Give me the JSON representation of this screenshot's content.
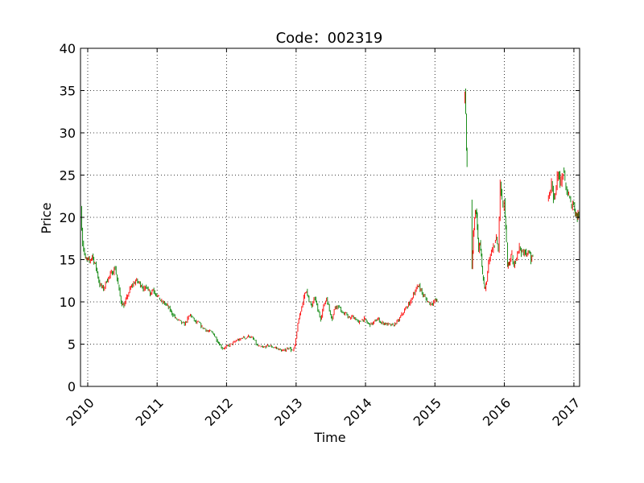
{
  "chart_data": {
    "type": "line",
    "chart_style": "daily candlestick (red = up day, green = down day)",
    "title": "Code：002319",
    "xlabel": "Time",
    "ylabel": "Price",
    "ylim": [
      0,
      40
    ],
    "xlim": [
      "2009-11-24",
      "2017-01-31"
    ],
    "grid": true,
    "grid_style": "dotted",
    "up_color": "#ff0000",
    "down_color": "#008000",
    "y_ticks": [
      0,
      5,
      10,
      15,
      20,
      25,
      30,
      35,
      40
    ],
    "x_ticks": [
      {
        "date": "2010-01-01",
        "label": "2010"
      },
      {
        "date": "2011-01-01",
        "label": "2011"
      },
      {
        "date": "2012-01-01",
        "label": "2012"
      },
      {
        "date": "2013-01-01",
        "label": "2013"
      },
      {
        "date": "2014-01-01",
        "label": "2014"
      },
      {
        "date": "2015-01-01",
        "label": "2015"
      },
      {
        "date": "2016-01-01",
        "label": "2016"
      },
      {
        "date": "2017-01-01",
        "label": "2017"
      }
    ],
    "segments": [
      {
        "x": [
          "2009-11-26",
          "2009-12-05",
          "2009-12-20",
          "2010-01-10",
          "2010-01-25",
          "2010-02-15",
          "2010-03-05",
          "2010-03-25",
          "2010-04-10",
          "2010-04-25",
          "2010-05-10",
          "2010-05-25",
          "2010-06-10",
          "2010-06-25",
          "2010-07-10",
          "2010-07-25",
          "2010-08-10",
          "2010-08-25",
          "2010-09-10",
          "2010-09-25",
          "2010-10-10",
          "2010-10-25",
          "2010-11-10",
          "2010-11-25",
          "2010-12-10",
          "2010-12-25",
          "2011-01-10",
          "2011-01-25",
          "2011-02-10",
          "2011-02-25",
          "2011-03-10",
          "2011-03-25",
          "2011-04-10",
          "2011-04-25",
          "2011-05-10",
          "2011-05-25",
          "2011-06-10",
          "2011-06-25",
          "2011-07-10",
          "2011-07-25",
          "2011-08-10",
          "2011-08-25",
          "2011-09-10",
          "2011-09-25",
          "2011-10-10",
          "2011-10-25",
          "2011-11-10",
          "2011-11-25",
          "2011-12-10",
          "2011-12-25",
          "2012-01-10",
          "2012-01-25",
          "2012-02-10",
          "2012-02-25",
          "2012-03-10",
          "2012-03-25",
          "2012-04-10",
          "2012-04-25",
          "2012-05-10",
          "2012-05-25",
          "2012-06-10",
          "2012-06-25",
          "2012-07-10",
          "2012-07-25",
          "2012-08-10",
          "2012-08-25",
          "2012-09-10",
          "2012-09-25",
          "2012-10-10",
          "2012-10-25",
          "2012-11-10",
          "2012-11-25",
          "2012-12-05",
          "2012-12-15",
          "2012-12-25",
          "2013-01-05",
          "2013-01-15",
          "2013-01-25",
          "2013-02-10",
          "2013-02-25",
          "2013-03-10",
          "2013-03-25",
          "2013-04-10",
          "2013-04-25",
          "2013-05-10",
          "2013-05-25",
          "2013-06-10",
          "2013-06-25",
          "2013-07-10",
          "2013-07-25",
          "2013-08-10",
          "2013-08-25",
          "2013-09-10",
          "2013-09-25",
          "2013-10-10",
          "2013-10-25",
          "2013-11-10",
          "2013-11-25",
          "2013-12-10",
          "2013-12-25",
          "2014-01-10",
          "2014-01-25",
          "2014-02-10",
          "2014-02-25",
          "2014-03-10",
          "2014-03-25",
          "2014-04-10",
          "2014-04-25",
          "2014-05-10",
          "2014-05-25",
          "2014-06-10",
          "2014-06-25",
          "2014-07-10",
          "2014-07-25",
          "2014-08-10",
          "2014-08-25",
          "2014-09-10",
          "2014-09-25",
          "2014-10-10",
          "2014-10-25",
          "2014-11-10",
          "2014-11-25",
          "2014-12-10",
          "2014-12-25",
          "2015-01-05",
          "2015-01-12"
        ],
        "y": [
          21,
          17,
          15,
          14.8,
          15.5,
          14,
          12,
          11.5,
          12.5,
          13,
          13.5,
          14,
          12,
          10,
          9.5,
          10.5,
          11.5,
          12,
          12.5,
          12.3,
          12,
          11.5,
          11.8,
          11,
          11.5,
          11,
          10.5,
          10,
          9.8,
          9.5,
          9,
          8.5,
          8,
          7.8,
          7.5,
          7.3,
          8,
          8.5,
          8,
          7.5,
          7.5,
          7,
          6.8,
          6.5,
          6.5,
          6.2,
          5.5,
          5,
          4.5,
          4.6,
          4.8,
          5,
          5.2,
          5.5,
          5.5,
          5.8,
          5.7,
          6,
          5.8,
          5.5,
          4.8,
          4.7,
          4.6,
          4.7,
          4.8,
          4.7,
          4.6,
          4.5,
          4.3,
          4.2,
          4.4,
          4.6,
          4.3,
          4.2,
          4.8,
          6.5,
          8,
          9,
          10.5,
          11.5,
          10,
          9.5,
          10.5,
          9,
          8,
          9.5,
          10.5,
          9,
          8,
          9.5,
          9.5,
          9,
          8.5,
          8.5,
          8,
          8.3,
          8,
          7.5,
          7.8,
          8,
          7.5,
          7.3,
          7.5,
          7.8,
          8,
          7.5,
          7.5,
          7.3,
          7.3,
          7.2,
          7.5,
          7.8,
          8.5,
          9,
          9.5,
          10,
          11,
          11.5,
          12,
          11,
          10.5,
          10,
          9.8,
          10,
          10.2,
          10
        ]
      },
      {
        "x": [
          "2015-06-05",
          "2015-06-08",
          "2015-06-12",
          "2015-06-16",
          "2015-06-19"
        ],
        "y": [
          34,
          35,
          32,
          28,
          26
        ]
      },
      {
        "x": [
          "2015-07-10",
          "2015-07-15",
          "2015-07-22",
          "2015-07-29",
          "2015-08-05",
          "2015-08-12",
          "2015-08-19",
          "2015-08-26",
          "2015-09-02",
          "2015-09-09",
          "2015-09-16",
          "2015-09-23",
          "2015-09-30",
          "2015-10-10",
          "2015-10-20",
          "2015-10-30",
          "2015-11-10",
          "2015-11-20",
          "2015-11-30",
          "2015-12-05",
          "2015-12-10",
          "2015-12-15",
          "2015-12-20",
          "2015-12-25",
          "2015-12-31",
          "2016-01-05",
          "2016-01-12",
          "2016-01-18",
          "2016-01-25",
          "2016-02-01",
          "2016-02-10",
          "2016-02-20",
          "2016-03-01",
          "2016-03-10",
          "2016-03-20",
          "2016-03-30",
          "2016-04-10",
          "2016-04-20",
          "2016-04-30",
          "2016-05-10",
          "2016-05-20",
          "2016-05-30"
        ],
        "y": [
          22,
          14,
          18,
          20,
          21,
          19,
          16,
          17,
          15.5,
          13,
          12,
          11.5,
          12.5,
          14.5,
          15.5,
          16,
          17,
          17.5,
          16,
          20,
          24,
          23,
          22,
          21,
          22,
          20,
          17,
          14,
          14.5,
          15,
          15.5,
          14,
          15,
          16,
          16.5,
          16,
          15.5,
          16,
          15.5,
          16,
          15,
          15.5
        ]
      },
      {
        "x": [
          "2016-08-15",
          "2016-08-25",
          "2016-09-05",
          "2016-09-15",
          "2016-09-25",
          "2016-10-05",
          "2016-10-15",
          "2016-10-25",
          "2016-11-05",
          "2016-11-15",
          "2016-11-25",
          "2016-12-05",
          "2016-12-15",
          "2016-12-25",
          "2017-01-05",
          "2017-01-12",
          "2017-01-19",
          "2017-01-26"
        ],
        "y": [
          22,
          23,
          24,
          22.5,
          23,
          24.5,
          25,
          24,
          25.5,
          24,
          23,
          22.5,
          21.5,
          21.8,
          21,
          20.5,
          20,
          20.3
        ]
      }
    ]
  }
}
